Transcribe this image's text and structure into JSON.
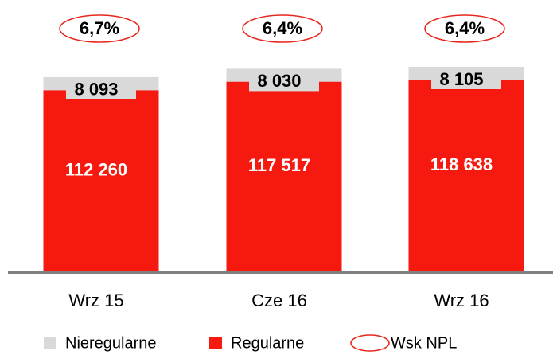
{
  "chart_data": {
    "type": "stacked_bar",
    "categories": [
      "Wrz 15",
      "Cze 16",
      "Wrz 16"
    ],
    "series": [
      {
        "name": "Regularne",
        "color": "#f5190f",
        "values": [
          112260,
          117517,
          118638
        ],
        "value_labels": [
          "112 260",
          "117 517",
          "118 638"
        ]
      },
      {
        "name": "Nieregularne",
        "color": "#d9d9d9",
        "values": [
          8093,
          8030,
          8105
        ],
        "value_labels": [
          "8 093",
          "8 030",
          "8 105"
        ]
      }
    ],
    "annotation_series": {
      "name": "Wsk NPL",
      "color": "#e8261c",
      "values": [
        6.7,
        6.4,
        6.4
      ],
      "value_labels": [
        "6,7%",
        "6,4%",
        "6,4%"
      ]
    },
    "legend_order": [
      1,
      0
    ]
  }
}
